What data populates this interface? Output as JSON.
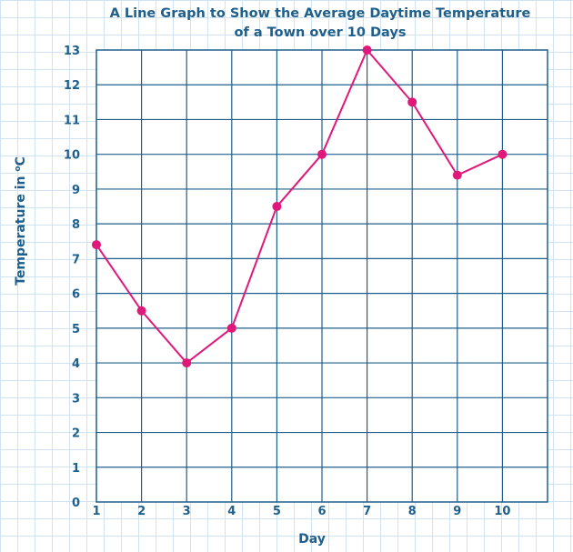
{
  "chart_data": {
    "type": "line",
    "title": [
      "A Line Graph to Show the Average Daytime Temperature",
      "of a Town over 10 Days"
    ],
    "xlabel": "Day",
    "ylabel": "Temperature in ",
    "ylabel_sup": "o",
    "ylabel_unit": "C",
    "categories": [
      "1",
      "2",
      "3",
      "4",
      "5",
      "6",
      "7",
      "8",
      "9",
      "10"
    ],
    "yticks": [
      "0",
      "1",
      "2",
      "3",
      "4",
      "5",
      "6",
      "7",
      "8",
      "9",
      "10",
      "11",
      "12",
      "13"
    ],
    "ylim": [
      0,
      13
    ],
    "x_columns": 10,
    "grid": true,
    "series": [
      {
        "name": "Average Daytime Temperature",
        "values": [
          7.4,
          5.5,
          4.0,
          5.0,
          8.5,
          10.0,
          13.0,
          11.5,
          9.4,
          10.0
        ]
      }
    ],
    "colors": {
      "text": "#1f5f8b",
      "grid": "#1f5f8b",
      "line": "#e0187a",
      "marker": "#e0187a"
    }
  }
}
